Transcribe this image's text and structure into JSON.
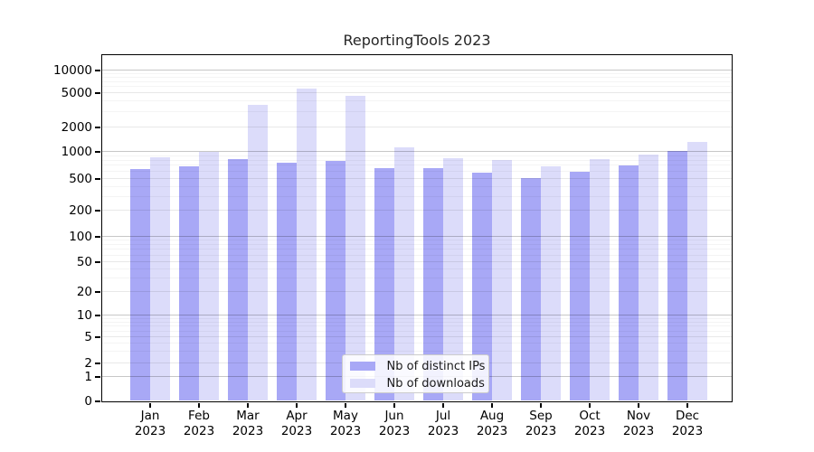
{
  "title": "ReportingTools 2023",
  "chart_data": {
    "type": "bar",
    "title": "ReportingTools 2023",
    "categories": [
      "Jan",
      "Feb",
      "Mar",
      "Apr",
      "May",
      "Jun",
      "Jul",
      "Aug",
      "Sep",
      "Oct",
      "Nov",
      "Dec"
    ],
    "year": "2023",
    "series": [
      {
        "name": "Nb of distinct IPs",
        "color": "#a8a8f6",
        "values": [
          630,
          680,
          830,
          750,
          780,
          650,
          650,
          580,
          510,
          590,
          700,
          1010
        ]
      },
      {
        "name": "Nb of downloads",
        "color": "#dcdcfa",
        "values": [
          870,
          980,
          3600,
          5700,
          4550,
          1120,
          850,
          800,
          680,
          830,
          920,
          1300
        ]
      }
    ],
    "yscale": "symlog",
    "yticks": [
      0,
      1,
      2,
      5,
      10,
      20,
      50,
      100,
      200,
      500,
      1000,
      2000,
      5000,
      10000
    ],
    "ylim": [
      0,
      13000
    ],
    "grid": true,
    "legend_position": "lower center"
  }
}
